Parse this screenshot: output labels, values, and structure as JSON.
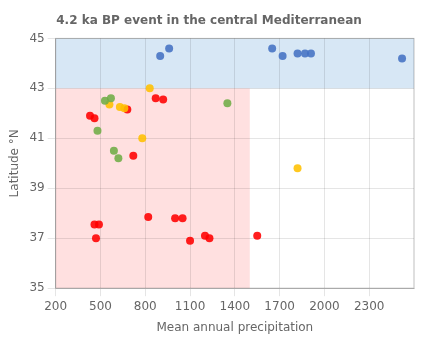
{
  "chart_data": {
    "type": "scatter",
    "title": "4.2 ka BP event in the central Mediterranean",
    "xlabel": "Mean annual precipitation",
    "ylabel": "Latitude °N",
    "xlim": [
      200,
      2600
    ],
    "ylim": [
      35,
      45
    ],
    "xticks": [
      200,
      500,
      800,
      1100,
      1400,
      1700,
      2000,
      2300
    ],
    "yticks": [
      35,
      37,
      39,
      41,
      43,
      45
    ],
    "grid": true,
    "regions": [
      {
        "x": [
          200,
          2600
        ],
        "y": [
          43,
          45
        ],
        "color": "#BDD7EE"
      },
      {
        "x": [
          200,
          1500
        ],
        "y": [
          35,
          43
        ],
        "color": "#FFCCCC"
      }
    ],
    "series": [
      {
        "color": "#4472C4",
        "x": [
          900,
          960,
          1650,
          1720,
          1820,
          1870,
          1910,
          2520
        ],
        "y": [
          44.3,
          44.6,
          44.6,
          44.3,
          44.4,
          44.4,
          44.4,
          44.2
        ]
      },
      {
        "color": "#70AD47",
        "x": [
          480,
          530,
          570,
          590,
          620,
          1350
        ],
        "y": [
          41.3,
          42.5,
          42.6,
          40.5,
          40.2,
          42.4
        ]
      },
      {
        "color": "#FFC000",
        "x": [
          560,
          630,
          660,
          780,
          830,
          1820
        ],
        "y": [
          42.35,
          42.25,
          42.2,
          41.0,
          43.0,
          39.8
        ]
      },
      {
        "color": "#FF0000",
        "x": [
          430,
          460,
          460,
          470,
          490,
          680,
          720,
          820,
          870,
          920,
          1000,
          1050,
          1100,
          1200,
          1230,
          1550
        ],
        "y": [
          41.9,
          41.8,
          37.55,
          37.0,
          37.55,
          42.15,
          40.3,
          37.85,
          42.6,
          42.55,
          37.8,
          37.8,
          36.9,
          37.1,
          37.0,
          37.1
        ]
      }
    ]
  }
}
